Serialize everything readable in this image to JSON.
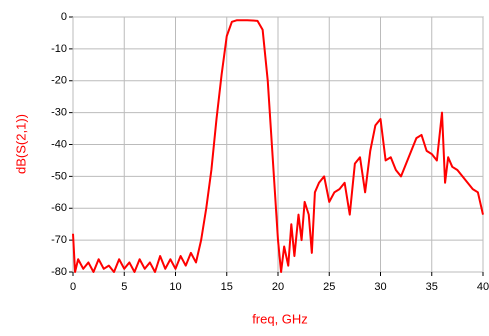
{
  "chart_data": {
    "type": "line",
    "x_label": "freq, GHz",
    "y_label": "dB(S(2,1))",
    "x": [
      0,
      0.2,
      0.5,
      1,
      1.5,
      2,
      2.5,
      3,
      3.5,
      4,
      4.5,
      5,
      5.5,
      6,
      6.5,
      7,
      7.5,
      8,
      8.5,
      9,
      9.5,
      10,
      10.5,
      11,
      11.5,
      12,
      12.5,
      13,
      13.5,
      14,
      14.5,
      15,
      15.5,
      16,
      17,
      18,
      18.5,
      19,
      19.5,
      20,
      20.3,
      20.6,
      21,
      21.3,
      21.6,
      22,
      22.3,
      22.6,
      23,
      23.3,
      23.6,
      24,
      24.5,
      25,
      25.5,
      26,
      26.5,
      27,
      27.5,
      28,
      28.5,
      29,
      29.5,
      30,
      30.5,
      31,
      31.5,
      32,
      32.5,
      33,
      33.5,
      34,
      34.5,
      35,
      35.5,
      36,
      36.3,
      36.6,
      37,
      37.5,
      38,
      38.5,
      39,
      39.5,
      40
    ],
    "series": [
      {
        "color": "#ff0000",
        "values": [
          -68,
          -80,
          -76,
          -79,
          -77,
          -80,
          -76,
          -79,
          -78,
          -80,
          -76,
          -79,
          -77,
          -80,
          -76,
          -79,
          -77,
          -80,
          -75,
          -79,
          -76,
          -79,
          -75,
          -78,
          -74,
          -77,
          -70,
          -60,
          -48,
          -32,
          -18,
          -6,
          -1.5,
          -1,
          -1,
          -1.2,
          -4,
          -20,
          -45,
          -70,
          -80,
          -72,
          -78,
          -65,
          -75,
          -62,
          -70,
          -58,
          -62,
          -74,
          -55,
          -52,
          -50,
          -58,
          -55,
          -54,
          -52,
          -62,
          -46,
          -44,
          -55,
          -42,
          -34,
          -32,
          -45,
          -44,
          -48,
          -50,
          -46,
          -42,
          -38,
          -37,
          -42,
          -43,
          -45,
          -30,
          -52,
          -44,
          -47,
          -48,
          -50,
          -52,
          -54,
          -55,
          -62
        ]
      }
    ],
    "xlim": [
      0,
      40
    ],
    "xticks": [
      0,
      5,
      10,
      15,
      20,
      25,
      30,
      35,
      40
    ],
    "ylim": [
      -80,
      0
    ],
    "yticks": [
      0,
      -10,
      -20,
      -30,
      -40,
      -50,
      -60,
      -70,
      -80
    ],
    "grid": true
  }
}
